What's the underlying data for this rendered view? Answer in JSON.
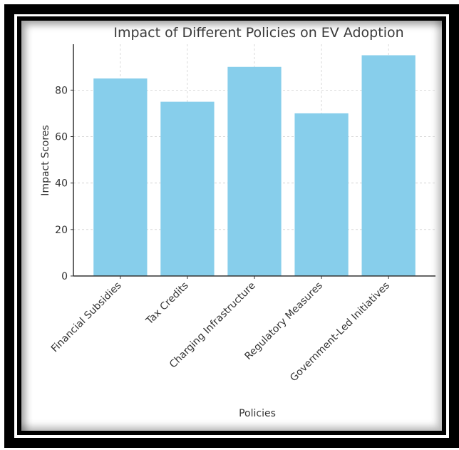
{
  "chart_data": {
    "type": "bar",
    "title": "Impact of Different Policies on EV Adoption",
    "xlabel": "Policies",
    "ylabel": "Impact Scores",
    "categories": [
      "Financial Subsidies",
      "Tax Credits",
      "Charging Infrastructure",
      "Regulatory Measures",
      "Government-Led Initiatives"
    ],
    "values": [
      85,
      75,
      90,
      70,
      95
    ],
    "ylim": [
      0,
      99.75
    ],
    "yticks": [
      0,
      20,
      40,
      60,
      80
    ],
    "grid": true,
    "bar_color": "#87CEEB",
    "xtick_rotation": "45 degrees"
  }
}
